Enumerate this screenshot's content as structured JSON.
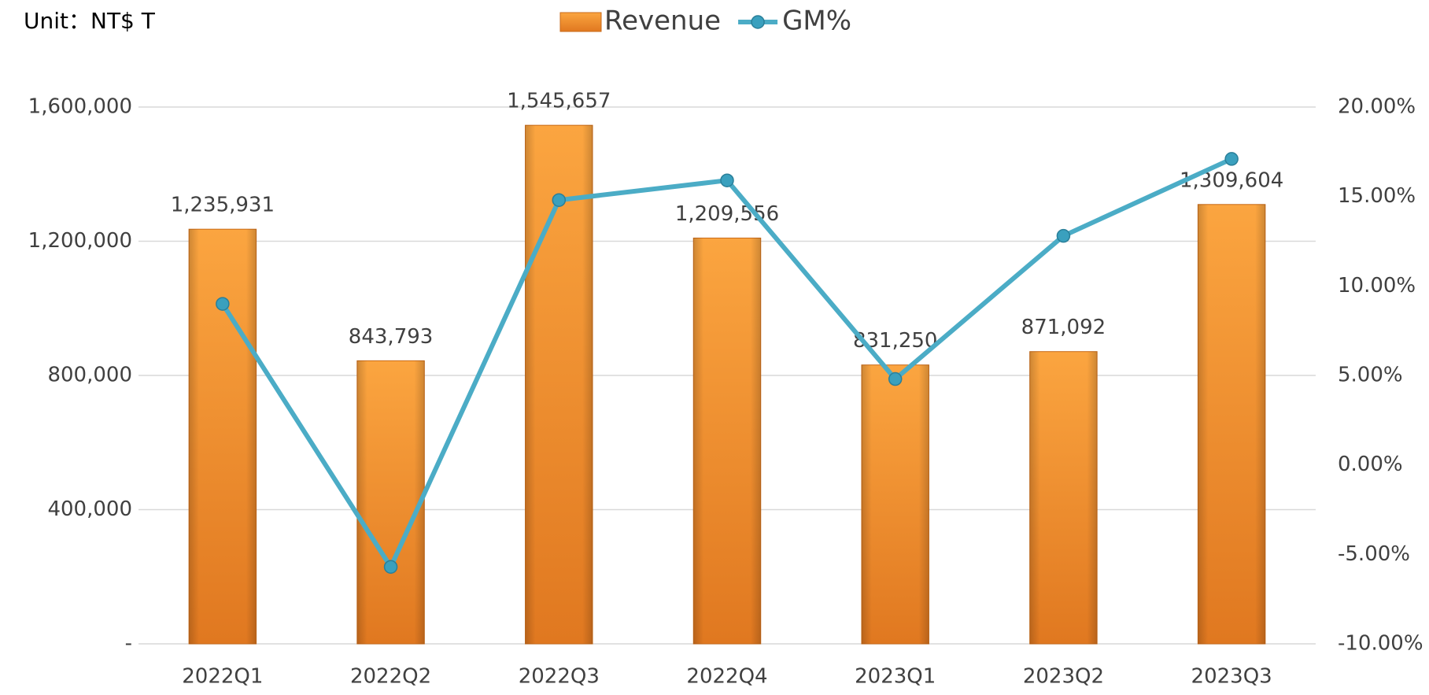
{
  "chart_data": {
    "type": "bar_line",
    "subtitle": "Unit：NT$ T",
    "categories": [
      "2022Q1",
      "2022Q2",
      "2022Q3",
      "2022Q4",
      "2023Q1",
      "2023Q2",
      "2023Q3"
    ],
    "series": [
      {
        "name": "Revenue",
        "type": "bar",
        "color": "#f59432",
        "axis": "y",
        "values": [
          1235931,
          843793,
          1545657,
          1209556,
          831250,
          871092,
          1309604
        ],
        "value_labels": [
          "1,235,931",
          "843,793",
          "1,545,657",
          "1,209,556",
          "831,250",
          "871,092",
          "1,309,604"
        ]
      },
      {
        "name": "GM%",
        "type": "line",
        "color": "#4bacc6",
        "axis": "y2",
        "values": [
          9.0,
          -5.7,
          14.8,
          15.9,
          4.8,
          12.8,
          17.1
        ]
      }
    ],
    "ylim": [
      0,
      1600000
    ],
    "yticks": [
      {
        "value": 0,
        "label": "-"
      },
      {
        "value": 400000,
        "label": "400,000"
      },
      {
        "value": 800000,
        "label": "800,000"
      },
      {
        "value": 1200000,
        "label": "1,200,000"
      },
      {
        "value": 1600000,
        "label": "1,600,000"
      }
    ],
    "y2lim": [
      -10,
      20
    ],
    "y2ticks": [
      {
        "value": -10,
        "label": "-10.00%"
      },
      {
        "value": -5,
        "label": "-5.00%"
      },
      {
        "value": 0,
        "label": "0.00%"
      },
      {
        "value": 5,
        "label": "5.00%"
      },
      {
        "value": 10,
        "label": "10.00%"
      },
      {
        "value": 15,
        "label": "15.00%"
      },
      {
        "value": 20,
        "label": "20.00%"
      }
    ],
    "grid": true,
    "legend": "top"
  }
}
